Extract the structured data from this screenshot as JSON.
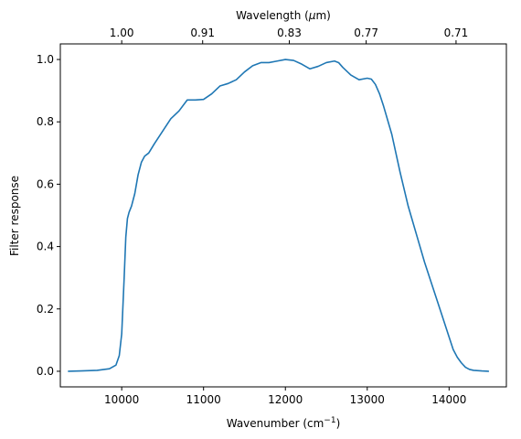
{
  "chart_data": {
    "type": "line",
    "title": "",
    "xlabel": "Wavenumber (cm",
    "xlabel_sup": "−1",
    "xlabel_suffix": ")",
    "ylabel": "Filter response",
    "top_axis_label": "Wavelength (",
    "top_axis_label_mu": "μ",
    "top_axis_label_suffix": "m)",
    "xlim": [
      9250,
      14700
    ],
    "ylim": [
      -0.05,
      1.05
    ],
    "x_ticks": [
      10000,
      11000,
      12000,
      13000,
      14000
    ],
    "x_tick_labels": [
      "10000",
      "11000",
      "12000",
      "13000",
      "14000"
    ],
    "y_ticks": [
      0.0,
      0.2,
      0.4,
      0.6,
      0.8,
      1.0
    ],
    "y_tick_labels": [
      "0.0",
      "0.2",
      "0.4",
      "0.6",
      "0.8",
      "1.0"
    ],
    "top_ticks": [
      10000,
      10989,
      12048,
      12987,
      14085
    ],
    "top_tick_labels": [
      "1.00",
      "0.91",
      "0.83",
      "0.77",
      "0.71"
    ],
    "grid": false,
    "line_color": "#1f77b4",
    "series": [
      {
        "x": [
          9350,
          9500,
          9700,
          9850,
          9930,
          9970,
          10000,
          10030,
          10050,
          10070,
          10090,
          10120,
          10160,
          10200,
          10240,
          10280,
          10330,
          10400,
          10500,
          10600,
          10700,
          10800,
          10900,
          11000,
          11100,
          11200,
          11300,
          11400,
          11500,
          11600,
          11700,
          11800,
          11900,
          12000,
          12100,
          12200,
          12300,
          12400,
          12500,
          12600,
          12650,
          12700,
          12800,
          12900,
          13000,
          13050,
          13100,
          13150,
          13200,
          13300,
          13400,
          13500,
          13600,
          13700,
          13800,
          13900,
          14000,
          14050,
          14100,
          14150,
          14200,
          14250,
          14300,
          14400,
          14480
        ],
        "y": [
          0.0,
          0.001,
          0.003,
          0.008,
          0.02,
          0.05,
          0.12,
          0.3,
          0.43,
          0.49,
          0.51,
          0.53,
          0.57,
          0.63,
          0.67,
          0.69,
          0.7,
          0.73,
          0.77,
          0.81,
          0.835,
          0.87,
          0.87,
          0.872,
          0.89,
          0.915,
          0.923,
          0.935,
          0.96,
          0.98,
          0.99,
          0.99,
          0.995,
          1.0,
          0.997,
          0.985,
          0.97,
          0.978,
          0.99,
          0.995,
          0.99,
          0.975,
          0.95,
          0.935,
          0.94,
          0.937,
          0.92,
          0.89,
          0.85,
          0.76,
          0.64,
          0.53,
          0.44,
          0.35,
          0.27,
          0.19,
          0.11,
          0.07,
          0.045,
          0.027,
          0.013,
          0.006,
          0.003,
          0.001,
          0.0
        ]
      }
    ]
  }
}
